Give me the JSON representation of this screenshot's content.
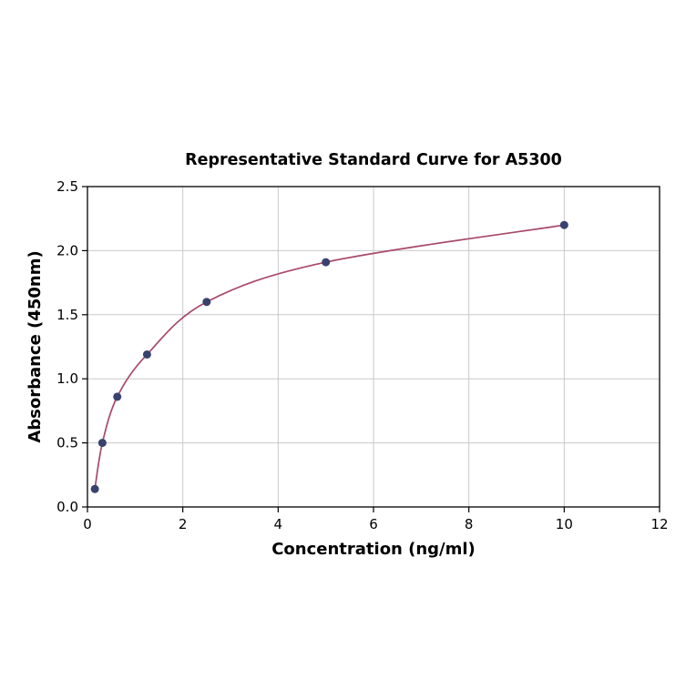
{
  "chart_data": {
    "type": "scatter",
    "title": "Representative Standard Curve for A5300",
    "xlabel": "Concentration (ng/ml)",
    "ylabel": "Absorbance (450nm)",
    "xlim": [
      0,
      12
    ],
    "ylim": [
      0,
      2.5
    ],
    "xticks": [
      0,
      2,
      4,
      6,
      8,
      10,
      12
    ],
    "yticks": [
      0.0,
      0.5,
      1.0,
      1.5,
      2.0,
      2.5
    ],
    "x": [
      0.156,
      0.313,
      0.625,
      1.25,
      2.5,
      5,
      10
    ],
    "y": [
      0.14,
      0.5,
      0.86,
      1.19,
      1.6,
      1.91,
      2.2
    ],
    "fit_line": true,
    "grid": true,
    "legend": "none",
    "colors": {
      "line": "#a8496b",
      "marker": "#39426e",
      "grid": "#c9c9c9",
      "axis": "#000000",
      "background": "#ffffff"
    }
  }
}
